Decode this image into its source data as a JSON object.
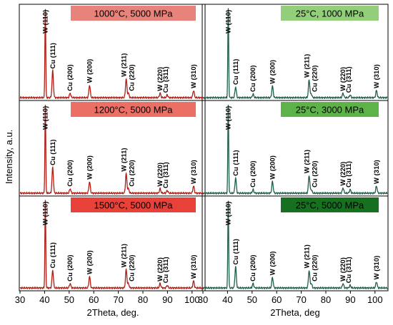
{
  "chart_data": {
    "type": "line",
    "shared_xlim": [
      30,
      105
    ],
    "x_ticks": [
      "30",
      "40",
      "50",
      "60",
      "70",
      "80",
      "90",
      "100"
    ],
    "panels": [
      {
        "column": "left",
        "row": 0,
        "label": "1000°C, 5000 MPa",
        "label_color": "#e8837c",
        "line_color": "#b01d14",
        "peaks": [
          {
            "label": "W (110)",
            "x": 40.3,
            "height": 1.0
          },
          {
            "label": "Cu (111)",
            "x": 43.3,
            "height": 0.3
          },
          {
            "label": "Cu (200)",
            "x": 50.4,
            "height": 0.05
          },
          {
            "label": "W (200)",
            "x": 58.3,
            "height": 0.14
          },
          {
            "label": "W (211)",
            "x": 73.2,
            "height": 0.21
          },
          {
            "label": "Cu (220)",
            "x": 74.1,
            "height": 0.05
          },
          {
            "label": "W (220)",
            "x": 87.0,
            "height": 0.05
          },
          {
            "label": "Cu (311)",
            "x": 89.9,
            "height": 0.03
          },
          {
            "label": "W (310)",
            "x": 100.6,
            "height": 0.08
          }
        ]
      },
      {
        "column": "left",
        "row": 1,
        "label": "1200°C, 5000 MPa",
        "label_color": "#ec6f66",
        "line_color": "#b01d14",
        "peaks": [
          {
            "label": "W (110)",
            "x": 40.3,
            "height": 1.0
          },
          {
            "label": "Cu (111)",
            "x": 43.3,
            "height": 0.29
          },
          {
            "label": "Cu (200)",
            "x": 50.4,
            "height": 0.05
          },
          {
            "label": "W (200)",
            "x": 58.3,
            "height": 0.13
          },
          {
            "label": "W (211)",
            "x": 73.2,
            "height": 0.22
          },
          {
            "label": "Cu (220)",
            "x": 74.1,
            "height": 0.05
          },
          {
            "label": "W (220)",
            "x": 87.0,
            "height": 0.05
          },
          {
            "label": "Cu (311)",
            "x": 89.9,
            "height": 0.03
          },
          {
            "label": "W (310)",
            "x": 100.6,
            "height": 0.08
          }
        ]
      },
      {
        "column": "left",
        "row": 2,
        "label": "1500°C, 5000 MPa",
        "label_color": "#e8413a",
        "line_color": "#b01d14",
        "peaks": [
          {
            "label": "W (110)",
            "x": 40.3,
            "height": 1.0
          },
          {
            "label": "Cu (111)",
            "x": 43.3,
            "height": 0.2
          },
          {
            "label": "Cu (200)",
            "x": 50.4,
            "height": 0.05
          },
          {
            "label": "W (200)",
            "x": 58.3,
            "height": 0.13
          },
          {
            "label": "W (211)",
            "x": 73.2,
            "height": 0.21
          },
          {
            "label": "Cu (220)",
            "x": 74.1,
            "height": 0.05
          },
          {
            "label": "W (220)",
            "x": 87.0,
            "height": 0.05
          },
          {
            "label": "Cu (311)",
            "x": 89.9,
            "height": 0.03
          },
          {
            "label": "W (310)",
            "x": 100.6,
            "height": 0.08
          }
        ]
      },
      {
        "column": "right",
        "row": 0,
        "label": "25°C, 1000 MPa",
        "label_color": "#93cf7a",
        "line_color": "#1f5e4a",
        "peaks": [
          {
            "label": "W (110)",
            "x": 40.3,
            "height": 1.0
          },
          {
            "label": "Cu (111)",
            "x": 43.3,
            "height": 0.12
          },
          {
            "label": "Cu (200)",
            "x": 50.4,
            "height": 0.04
          },
          {
            "label": "W (200)",
            "x": 58.3,
            "height": 0.13
          },
          {
            "label": "W (211)",
            "x": 73.2,
            "height": 0.2
          },
          {
            "label": "Cu (220)",
            "x": 74.1,
            "height": 0.04
          },
          {
            "label": "W (220)",
            "x": 87.0,
            "height": 0.05
          },
          {
            "label": "Cu (311)",
            "x": 89.9,
            "height": 0.03
          },
          {
            "label": "W (310)",
            "x": 100.6,
            "height": 0.08
          }
        ]
      },
      {
        "column": "right",
        "row": 1,
        "label": "25°C, 3000 MPa",
        "label_color": "#5db348",
        "line_color": "#1f5e4a",
        "peaks": [
          {
            "label": "W (110)",
            "x": 40.3,
            "height": 1.0
          },
          {
            "label": "Cu (111)",
            "x": 43.3,
            "height": 0.17
          },
          {
            "label": "Cu (200)",
            "x": 50.4,
            "height": 0.04
          },
          {
            "label": "W (200)",
            "x": 58.3,
            "height": 0.13
          },
          {
            "label": "W (211)",
            "x": 73.2,
            "height": 0.2
          },
          {
            "label": "Cu (220)",
            "x": 74.1,
            "height": 0.04
          },
          {
            "label": "W (220)",
            "x": 87.0,
            "height": 0.06
          },
          {
            "label": "Cu (311)",
            "x": 89.9,
            "height": 0.04
          },
          {
            "label": "W (310)",
            "x": 100.6,
            "height": 0.08
          }
        ]
      },
      {
        "column": "right",
        "row": 2,
        "label": "25°C, 5000 MPa",
        "label_color": "#17701f",
        "line_color": "#1f5e4a",
        "peaks": [
          {
            "label": "W (110)",
            "x": 40.3,
            "height": 1.0
          },
          {
            "label": "Cu (111)",
            "x": 43.3,
            "height": 0.24
          },
          {
            "label": "Cu (200)",
            "x": 50.4,
            "height": 0.05
          },
          {
            "label": "W (200)",
            "x": 58.3,
            "height": 0.12
          },
          {
            "label": "W (211)",
            "x": 73.2,
            "height": 0.2
          },
          {
            "label": "Cu (220)",
            "x": 74.1,
            "height": 0.05
          },
          {
            "label": "W (220)",
            "x": 87.0,
            "height": 0.05
          },
          {
            "label": "Cu (311)",
            "x": 89.9,
            "height": 0.03
          },
          {
            "label": "W (310)",
            "x": 100.6,
            "height": 0.07
          }
        ]
      }
    ],
    "axes": {
      "left": {
        "xlabel": "2Theta, deg.",
        "ylabel": "Intensity, a.u."
      },
      "right": {
        "xlabel": "2Theta, deg"
      }
    },
    "grid": false
  }
}
